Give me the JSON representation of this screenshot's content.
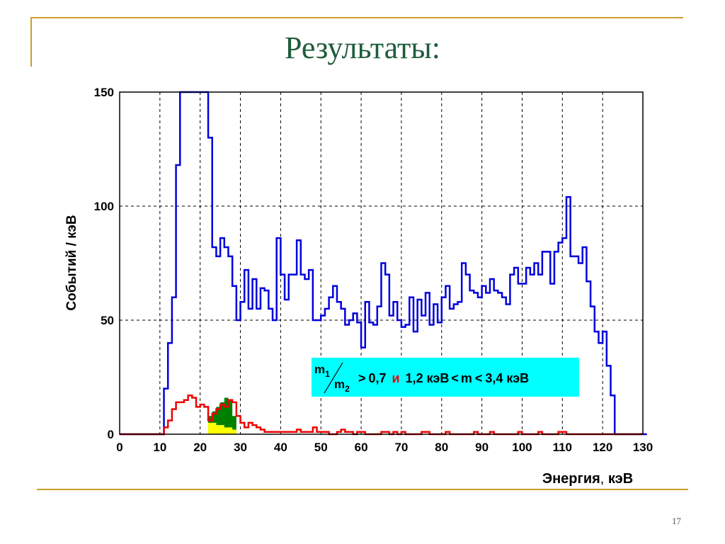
{
  "slide": {
    "title": "Результаты:",
    "number": "17"
  },
  "colors": {
    "frame": "#c9a227",
    "title": "#1f5c3a",
    "all_events": "#0000dd",
    "selected_events": "#ee0000",
    "fill_green": "#008000",
    "fill_yellow": "#ffff00",
    "annotation_bg": "#00ffff"
  },
  "chart_data": {
    "type": "line",
    "style": "step",
    "xlabel_main": "Энергия",
    "xlabel_unit": "кэВ",
    "xlabel_separator": ", ",
    "ylabel": "Событий / кэВ",
    "xlim": [
      0,
      130
    ],
    "ylim": [
      0,
      150
    ],
    "x_ticks": [
      0,
      10,
      20,
      30,
      40,
      50,
      60,
      70,
      80,
      90,
      100,
      110,
      120,
      130
    ],
    "y_ticks": [
      0,
      50,
      100,
      150
    ],
    "grid": true,
    "bin_width": 1,
    "series": [
      {
        "x_start": 0,
        "values": [
          0,
          0,
          0,
          0,
          0,
          0,
          0,
          0,
          0,
          0,
          0,
          20,
          40,
          60,
          118,
          150,
          150,
          150,
          150,
          150,
          150,
          150,
          130,
          82,
          78,
          86,
          82,
          78,
          65,
          50,
          58,
          72,
          55,
          68,
          55,
          64,
          63,
          55,
          50,
          86,
          70,
          59,
          70,
          70,
          85,
          70,
          68,
          72,
          50,
          50,
          52,
          55,
          60,
          65,
          58,
          55,
          48,
          50,
          53,
          49,
          38,
          58,
          49,
          48,
          56,
          75,
          70,
          52,
          58,
          50,
          47,
          48,
          60,
          45,
          59,
          52,
          62,
          48,
          57,
          49,
          60,
          65,
          55,
          57,
          58,
          75,
          70,
          63,
          62,
          60,
          65,
          62,
          68,
          63,
          62,
          60,
          57,
          70,
          73,
          66,
          66,
          73,
          70,
          75,
          70,
          80,
          80,
          66,
          80,
          84,
          86,
          104,
          78,
          78,
          75,
          82,
          67,
          56,
          45,
          40,
          45,
          30,
          17,
          0,
          0,
          0,
          0,
          0,
          0,
          0,
          0
        ]
      },
      {
        "x_start": 0,
        "values": [
          0,
          0,
          0,
          0,
          0,
          0,
          0,
          0,
          0,
          0,
          0,
          3,
          6,
          11,
          14,
          14,
          15,
          17,
          16,
          12,
          13,
          12,
          6,
          9,
          11,
          13,
          12,
          15,
          14,
          8,
          5,
          3,
          5,
          4,
          3,
          2,
          1,
          1,
          1,
          1,
          1,
          1,
          1,
          1,
          2,
          1,
          1,
          1,
          3,
          1,
          1,
          1,
          0,
          0,
          1,
          2,
          1,
          1,
          0,
          1,
          1,
          0,
          0,
          0,
          0,
          1,
          1,
          0,
          1,
          0,
          1,
          0,
          0,
          0,
          0,
          1,
          1,
          0,
          0,
          0,
          0,
          1,
          0,
          0,
          0,
          0,
          0,
          0,
          1,
          0,
          0,
          0,
          1,
          0,
          0,
          0,
          0,
          0,
          0,
          1,
          0,
          0,
          0,
          0,
          1,
          0,
          0,
          0,
          0,
          1,
          1,
          0,
          0,
          0,
          0,
          0,
          0,
          0,
          0,
          0,
          0,
          0,
          0,
          0,
          0,
          0,
          0,
          0,
          0,
          0
        ]
      }
    ],
    "shaded_region": {
      "x_range": [
        22,
        29
      ],
      "green_top": [
        8,
        10,
        12,
        14,
        16,
        15,
        8
      ],
      "yellow_top": [
        5,
        5,
        4,
        4,
        3,
        3,
        2
      ]
    },
    "annotation": {
      "m1": "m",
      "m1_sub": "1",
      "m2": "m",
      "m2_sub": "2",
      "gt": ">",
      "ratio": "0,7",
      "conj": "и",
      "lo": "1,2 кэВ",
      "lt1": "<",
      "m": "m",
      "lt2": "<",
      "hi": "3,4 кэВ"
    }
  }
}
